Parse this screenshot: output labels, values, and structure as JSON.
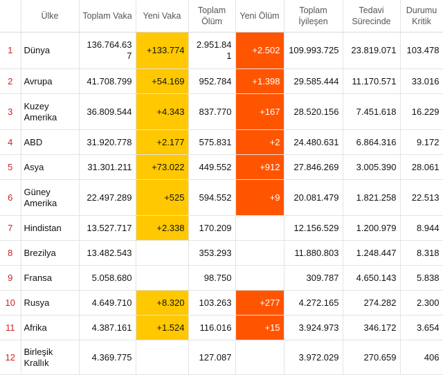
{
  "header": {
    "index": "",
    "country": "Ülke",
    "total_cases": "Toplam Vaka",
    "new_cases": "Yeni Vaka",
    "total_deaths": "Toplam Ölüm",
    "new_deaths": "Yeni Ölüm",
    "total_recovered": "Toplam İyileşen",
    "active": "Tedavi Sürecinde",
    "critical": "Durumu Kritik"
  },
  "rows": [
    {
      "index": "1",
      "country": "Dünya",
      "total_cases": "136.764.637",
      "new_cases": "+133.774",
      "total_deaths": "2.951.841",
      "new_deaths": "+2.502",
      "total_recovered": "109.993.725",
      "active": "23.819.071",
      "critical": "103.478"
    },
    {
      "index": "2",
      "country": "Avrupa",
      "total_cases": "41.708.799",
      "new_cases": "+54.169",
      "total_deaths": "952.784",
      "new_deaths": "+1.398",
      "total_recovered": "29.585.444",
      "active": "11.170.571",
      "critical": "33.016"
    },
    {
      "index": "3",
      "country": "Kuzey Amerika",
      "total_cases": "36.809.544",
      "new_cases": "+4.343",
      "total_deaths": "837.770",
      "new_deaths": "+167",
      "total_recovered": "28.520.156",
      "active": "7.451.618",
      "critical": "16.229"
    },
    {
      "index": "4",
      "country": "ABD",
      "total_cases": "31.920.778",
      "new_cases": "+2.177",
      "total_deaths": "575.831",
      "new_deaths": "+2",
      "total_recovered": "24.480.631",
      "active": "6.864.316",
      "critical": "9.172"
    },
    {
      "index": "5",
      "country": "Asya",
      "total_cases": "31.301.211",
      "new_cases": "+73.022",
      "total_deaths": "449.552",
      "new_deaths": "+912",
      "total_recovered": "27.846.269",
      "active": "3.005.390",
      "critical": "28.061"
    },
    {
      "index": "6",
      "country": "Güney Amerika",
      "total_cases": "22.497.289",
      "new_cases": "+525",
      "total_deaths": "594.552",
      "new_deaths": "+9",
      "total_recovered": "20.081.479",
      "active": "1.821.258",
      "critical": "22.513"
    },
    {
      "index": "7",
      "country": "Hindistan",
      "total_cases": "13.527.717",
      "new_cases": "+2.338",
      "total_deaths": "170.209",
      "new_deaths": "",
      "total_recovered": "12.156.529",
      "active": "1.200.979",
      "critical": "8.944"
    },
    {
      "index": "8",
      "country": "Brezilya",
      "total_cases": "13.482.543",
      "new_cases": "",
      "total_deaths": "353.293",
      "new_deaths": "",
      "total_recovered": "11.880.803",
      "active": "1.248.447",
      "critical": "8.318"
    },
    {
      "index": "9",
      "country": "Fransa",
      "total_cases": "5.058.680",
      "new_cases": "",
      "total_deaths": "98.750",
      "new_deaths": "",
      "total_recovered": "309.787",
      "active": "4.650.143",
      "critical": "5.838"
    },
    {
      "index": "10",
      "country": "Rusya",
      "total_cases": "4.649.710",
      "new_cases": "+8.320",
      "total_deaths": "103.263",
      "new_deaths": "+277",
      "total_recovered": "4.272.165",
      "active": "274.282",
      "critical": "2.300"
    },
    {
      "index": "11",
      "country": "Afrika",
      "total_cases": "4.387.161",
      "new_cases": "+1.524",
      "total_deaths": "116.016",
      "new_deaths": "+15",
      "total_recovered": "3.924.973",
      "active": "346.172",
      "critical": "3.654"
    },
    {
      "index": "12",
      "country": "Birleşik Krallık",
      "total_cases": "4.369.775",
      "new_cases": "",
      "total_deaths": "127.087",
      "new_deaths": "",
      "total_recovered": "3.972.029",
      "active": "270.659",
      "critical": "406"
    }
  ],
  "colors": {
    "new_cases_highlight": "#ffc800",
    "new_deaths_highlight": "#ff5500",
    "index_text": "#cc2222"
  }
}
